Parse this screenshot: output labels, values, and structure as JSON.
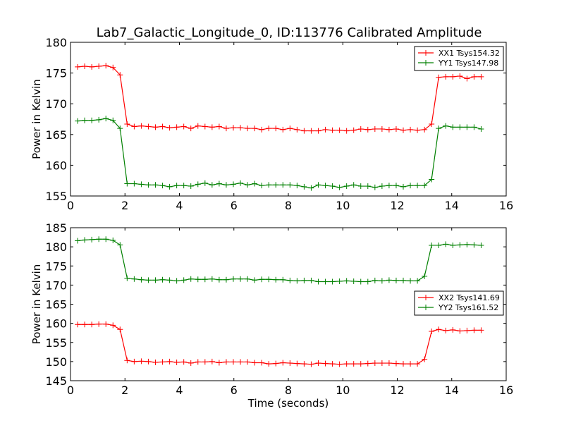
{
  "figure": {
    "title": "Lab7_Galactic_Longitude_0, ID:113776 Calibrated Amplitude"
  },
  "chart_data": [
    {
      "type": "line",
      "title": "Lab7_Galactic_Longitude_0, ID:113776 Calibrated Amplitude",
      "xlabel": "",
      "ylabel": "Power in Kelvin",
      "xlim": [
        0,
        16
      ],
      "ylim": [
        155,
        180
      ],
      "xticks": [
        0,
        2,
        4,
        6,
        8,
        10,
        12,
        14,
        16
      ],
      "yticks": [
        155,
        160,
        165,
        170,
        175,
        180
      ],
      "grid": false,
      "legend": "top-right",
      "marker": "+",
      "x": [
        0.26,
        0.52,
        0.78,
        1.04,
        1.3,
        1.56,
        1.82,
        2.08,
        2.34,
        2.6,
        2.86,
        3.12,
        3.38,
        3.64,
        3.9,
        4.16,
        4.42,
        4.68,
        4.94,
        5.2,
        5.46,
        5.72,
        5.98,
        6.24,
        6.5,
        6.76,
        7.02,
        7.28,
        7.54,
        7.8,
        8.06,
        8.32,
        8.58,
        8.84,
        9.1,
        9.36,
        9.62,
        9.88,
        10.14,
        10.4,
        10.66,
        10.92,
        11.18,
        11.44,
        11.7,
        11.96,
        12.22,
        12.48,
        12.74,
        13.0,
        13.26,
        13.52,
        13.78,
        14.04,
        14.3,
        14.56,
        14.82,
        15.08
      ],
      "series": [
        {
          "name": "XX1 Tsys154.32",
          "color": "#ff0000",
          "values": [
            176.0,
            176.1,
            176.0,
            176.1,
            176.2,
            175.9,
            174.7,
            166.7,
            166.3,
            166.4,
            166.3,
            166.2,
            166.3,
            166.1,
            166.2,
            166.3,
            166.0,
            166.4,
            166.3,
            166.2,
            166.3,
            166.0,
            166.1,
            166.1,
            166.0,
            166.0,
            165.8,
            166.0,
            166.0,
            165.8,
            166.0,
            165.8,
            165.6,
            165.6,
            165.6,
            165.8,
            165.7,
            165.7,
            165.6,
            165.7,
            165.9,
            165.8,
            165.9,
            165.9,
            165.8,
            165.9,
            165.7,
            165.8,
            165.7,
            165.8,
            166.7,
            174.3,
            174.4,
            174.4,
            174.5,
            174.1,
            174.4,
            174.4
          ]
        },
        {
          "name": "YY1 Tsys147.98",
          "color": "#008000",
          "values": [
            167.2,
            167.3,
            167.3,
            167.4,
            167.6,
            167.3,
            166.0,
            157.0,
            157.0,
            156.9,
            156.8,
            156.8,
            156.7,
            156.5,
            156.7,
            156.7,
            156.6,
            156.9,
            157.1,
            156.8,
            157.0,
            156.8,
            156.9,
            157.1,
            156.8,
            157.0,
            156.7,
            156.8,
            156.8,
            156.8,
            156.8,
            156.7,
            156.5,
            156.3,
            156.8,
            156.7,
            156.6,
            156.4,
            156.6,
            156.8,
            156.6,
            156.6,
            156.4,
            156.6,
            156.7,
            156.7,
            156.5,
            156.7,
            156.7,
            156.7,
            157.7,
            166.0,
            166.4,
            166.2,
            166.2,
            166.2,
            166.2,
            165.9
          ]
        }
      ]
    },
    {
      "type": "line",
      "title": "",
      "xlabel": "Time (seconds)",
      "ylabel": "Power in Kelvin",
      "xlim": [
        0,
        16
      ],
      "ylim": [
        145,
        185
      ],
      "xticks": [
        0,
        2,
        4,
        6,
        8,
        10,
        12,
        14,
        16
      ],
      "yticks": [
        145,
        150,
        155,
        160,
        165,
        170,
        175,
        180,
        185
      ],
      "grid": false,
      "legend": "center-right",
      "marker": "+",
      "x": [
        0.26,
        0.52,
        0.78,
        1.04,
        1.3,
        1.56,
        1.82,
        2.08,
        2.34,
        2.6,
        2.86,
        3.12,
        3.38,
        3.64,
        3.9,
        4.16,
        4.42,
        4.68,
        4.94,
        5.2,
        5.46,
        5.72,
        5.98,
        6.24,
        6.5,
        6.76,
        7.02,
        7.28,
        7.54,
        7.8,
        8.06,
        8.32,
        8.58,
        8.84,
        9.1,
        9.36,
        9.62,
        9.88,
        10.14,
        10.4,
        10.66,
        10.92,
        11.18,
        11.44,
        11.7,
        11.96,
        12.22,
        12.48,
        12.74,
        13.0,
        13.26,
        13.52,
        13.78,
        14.04,
        14.3,
        14.56,
        14.82,
        15.08
      ],
      "series": [
        {
          "name": "XX2 Tsys141.69",
          "color": "#ff0000",
          "values": [
            159.7,
            159.7,
            159.7,
            159.8,
            159.8,
            159.5,
            158.4,
            150.3,
            150.0,
            150.1,
            150.0,
            149.8,
            149.9,
            150.0,
            149.8,
            149.9,
            149.6,
            149.9,
            149.9,
            150.0,
            149.7,
            149.9,
            149.9,
            149.9,
            149.9,
            149.7,
            149.7,
            149.4,
            149.5,
            149.7,
            149.6,
            149.5,
            149.4,
            149.3,
            149.6,
            149.5,
            149.4,
            149.3,
            149.4,
            149.4,
            149.4,
            149.5,
            149.6,
            149.6,
            149.6,
            149.5,
            149.4,
            149.4,
            149.4,
            150.6,
            157.9,
            158.4,
            158.1,
            158.3,
            158.0,
            158.1,
            158.2,
            158.2
          ]
        },
        {
          "name": "YY2 Tsys161.52",
          "color": "#008000",
          "values": [
            181.6,
            181.8,
            181.9,
            182.0,
            182.0,
            181.7,
            180.5,
            171.8,
            171.6,
            171.4,
            171.3,
            171.3,
            171.4,
            171.3,
            171.1,
            171.3,
            171.6,
            171.5,
            171.5,
            171.6,
            171.4,
            171.4,
            171.6,
            171.6,
            171.6,
            171.3,
            171.5,
            171.5,
            171.4,
            171.4,
            171.2,
            171.1,
            171.2,
            171.2,
            170.9,
            170.9,
            170.9,
            171.0,
            171.1,
            171.0,
            170.9,
            170.9,
            171.2,
            171.1,
            171.3,
            171.2,
            171.2,
            171.1,
            171.1,
            172.3,
            180.4,
            180.4,
            180.7,
            180.4,
            180.5,
            180.6,
            180.5,
            180.4
          ]
        }
      ]
    }
  ]
}
